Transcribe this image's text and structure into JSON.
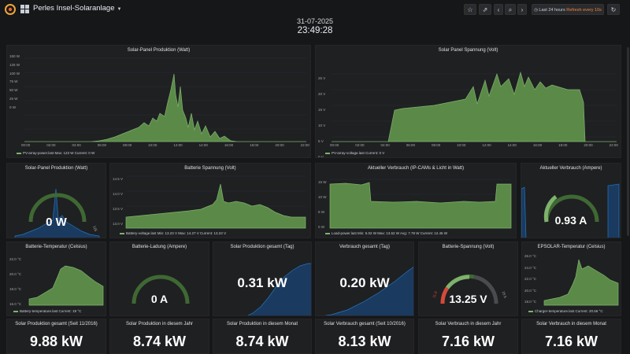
{
  "header": {
    "title": "Perles Insel-Solaranlage",
    "time_range": "Last 24 hours",
    "refresh": "Refresh every 10s",
    "date": "31-07-2025",
    "time": "23:49:28"
  },
  "colors": {
    "green": "#7eb26d",
    "blue": "#1f78c1",
    "red": "#d44a3a",
    "bg": "#161719",
    "panel": "#1f2022"
  },
  "icons": [
    "grafana-logo-icon",
    "dashboard-grid-icon",
    "star-icon",
    "share-icon",
    "zoom-out-icon",
    "back-icon",
    "forward-icon",
    "clock-icon",
    "refresh-icon"
  ],
  "panels": {
    "solar_power": {
      "title": "Solar-Panel Produktion (Watt)",
      "legend": "PV-array-power.last  Max: 123 W  Current: 0 W",
      "yticks": [
        "150 W",
        "125 W",
        "100 W",
        "75 W",
        "50 W",
        "25 W",
        "0 W"
      ],
      "xticks": [
        "00:00",
        "02:00",
        "04:00",
        "06:00",
        "08:00",
        "10:00",
        "12:00",
        "14:00",
        "16:00",
        "18:00",
        "20:00",
        "22:00"
      ]
    },
    "solar_voltage": {
      "title": "Solar Panel Spannung (Volt)",
      "legend": "PV-array-voltage.last  Current: 0 V",
      "yticks": [
        "25 V",
        "20 V",
        "15 V",
        "10 V",
        "5 V",
        "0 V"
      ],
      "xticks": [
        "00:00",
        "02:00",
        "04:00",
        "06:00",
        "08:00",
        "10:00",
        "12:00",
        "14:00",
        "16:00",
        "18:00",
        "20:00",
        "22:00"
      ]
    },
    "gauge_power": {
      "title": "Solar-Panel Produktion (Watt)",
      "value": "0 W",
      "max_label": "125"
    },
    "battery_voltage": {
      "title": "Batterie Spannung (Volt)",
      "legend": "Battery-voltage.last  Min: 13.23 V  Max: 14.27 V  Current: 13.23 V",
      "yticks": [
        "14.5 V",
        "14.0 V",
        "13.5 V",
        "13.0 V"
      ]
    },
    "load_power": {
      "title": "Aktueller Verbrauch (IP-CAMs & Licht in Watt)",
      "legend": "Load-power.last  Min: 5.02 W  Max: 13.62 W  Avg: 7.78 W  Current: 12.45 W",
      "yticks": [
        "15 W",
        "10 W",
        "5 W",
        "0 W"
      ]
    },
    "load_current": {
      "title": "Aktueller Verbrauch (Ampere)",
      "value": "0.93 A"
    },
    "battery_temp": {
      "title": "Batterie-Temperatur (Celsius)",
      "legend": "Battery-temperature.last  Current: 19 °C",
      "yticks": [
        "22.0 °C",
        "20.0 °C",
        "18.0 °C",
        "16.0 °C"
      ]
    },
    "battery_charge": {
      "title": "Batterie-Ladung (Ampere)",
      "value": "0 A"
    },
    "solar_day": {
      "title": "Solar Produktion gesamt (Tag)",
      "value": "0.31 kW"
    },
    "load_day": {
      "title": "Verbrauch gesamt (Tag)",
      "value": "0.20 kW"
    },
    "battery_gauge": {
      "title": "Batterie-Spannung (Volt)",
      "value": "13.25 V",
      "min_label": "11.8",
      "max_label": "15.5"
    },
    "charger_temp": {
      "title": "EPSOLAR-Temperatur (Celsius)",
      "legend": "Charger-temperature.last  Current: 20.56 °C",
      "yticks": [
        "26.0 °C",
        "24.0 °C",
        "22.0 °C",
        "20.0 °C",
        "18.0 °C"
      ]
    }
  },
  "stats": [
    {
      "title": "Solar Produktion gesamt (Seit 11/2016)",
      "value": "9.88 kW"
    },
    {
      "title": "Solar Produktion in diesem Jahr",
      "value": "8.74 kW"
    },
    {
      "title": "Solar Produktion in diesem Monat",
      "value": "8.74 kW"
    },
    {
      "title": "Solar Verbrauch gesamt (Seit 10/2016)",
      "value": "8.13 kW"
    },
    {
      "title": "Solar Verbrauch in diesem Jahr",
      "value": "7.16 kW"
    },
    {
      "title": "Solar Verbrauch in diesem Monat",
      "value": "7.16 kW"
    }
  ]
}
